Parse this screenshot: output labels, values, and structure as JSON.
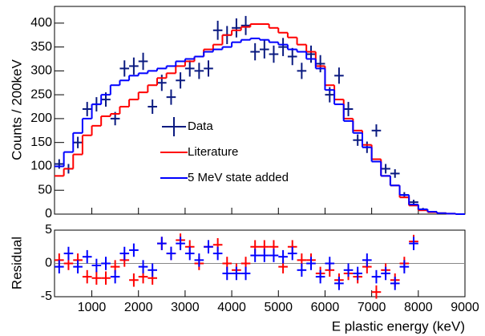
{
  "chart_data": [
    {
      "type": "step",
      "ylabel": "Counts / 200keV",
      "bins": [
        200,
        400,
        600,
        800,
        1000,
        1200,
        1400,
        1600,
        1800,
        2000,
        2200,
        2400,
        2600,
        2800,
        3000,
        3200,
        3400,
        3600,
        3800,
        4000,
        4200,
        4400,
        4600,
        4800,
        5000,
        5200,
        5400,
        5600,
        5800,
        6000,
        6200,
        6400,
        6600,
        6800,
        7000,
        7200,
        7400,
        7600,
        7800,
        8000,
        8200,
        8400,
        8600,
        8800,
        9000
      ],
      "x": [
        300,
        500,
        700,
        900,
        1100,
        1300,
        1500,
        1700,
        1900,
        2100,
        2300,
        2500,
        2700,
        2900,
        3100,
        3300,
        3500,
        3700,
        3900,
        4100,
        4300,
        4500,
        4700,
        4900,
        5100,
        5300,
        5500,
        5700,
        5900,
        6100,
        6300,
        6500,
        6700,
        6900,
        7100,
        7300,
        7500,
        7700,
        7900,
        8100,
        8300,
        8500,
        8700,
        8900
      ],
      "xlim": [
        200,
        9000
      ],
      "xticks": [
        1000,
        2000,
        3000,
        4000,
        5000,
        6000,
        7000,
        8000,
        9000
      ],
      "ylim": [
        0,
        435
      ],
      "yticks": [
        0,
        50,
        100,
        150,
        200,
        250,
        300,
        350,
        400
      ],
      "series": [
        {
          "name": "Data",
          "color": "#0a1a80",
          "kind": "points",
          "values": [
            105,
            95,
            150,
            220,
            230,
            240,
            200,
            305,
            310,
            320,
            225,
            275,
            245,
            280,
            305,
            300,
            305,
            385,
            375,
            390,
            395,
            340,
            345,
            335,
            350,
            330,
            300,
            335,
            315,
            250,
            290,
            220,
            155,
            140,
            175,
            95,
            85,
            40,
            25,
            10,
            null,
            null,
            null,
            null
          ],
          "errors": [
            10,
            10,
            12,
            15,
            15,
            15,
            14,
            17,
            18,
            18,
            15,
            17,
            16,
            17,
            17,
            17,
            17,
            20,
            19,
            20,
            20,
            18,
            19,
            18,
            19,
            18,
            17,
            18,
            18,
            16,
            17,
            15,
            12,
            12,
            13,
            10,
            9,
            6,
            5,
            3,
            null,
            null,
            null,
            null
          ]
        },
        {
          "name": "Literature",
          "color": "#ff0000",
          "kind": "step",
          "values": [
            80,
            95,
            125,
            165,
            185,
            205,
            210,
            225,
            240,
            255,
            270,
            285,
            295,
            310,
            320,
            330,
            345,
            355,
            375,
            385,
            392,
            398,
            398,
            390,
            380,
            370,
            355,
            340,
            310,
            270,
            240,
            200,
            175,
            145,
            115,
            80,
            60,
            35,
            18,
            8,
            4,
            2,
            1,
            0
          ]
        },
        {
          "name": "5 MeV state added",
          "color": "#0000ff",
          "kind": "step",
          "values": [
            100,
            130,
            170,
            200,
            230,
            250,
            270,
            280,
            290,
            295,
            300,
            305,
            310,
            320,
            325,
            330,
            340,
            345,
            350,
            360,
            365,
            368,
            365,
            360,
            355,
            345,
            340,
            325,
            305,
            260,
            230,
            195,
            170,
            140,
            110,
            80,
            60,
            40,
            20,
            10,
            5,
            2,
            1,
            0
          ]
        }
      ]
    },
    {
      "type": "residual",
      "ylabel": "Residual",
      "xlabel": "E plastic energy (keV)",
      "x": [
        300,
        500,
        700,
        900,
        1100,
        1300,
        1500,
        1700,
        1900,
        2100,
        2300,
        2500,
        2700,
        2900,
        3100,
        3300,
        3500,
        3700,
        3900,
        4100,
        4300,
        4500,
        4700,
        4900,
        5100,
        5300,
        5500,
        5700,
        5900,
        6100,
        6300,
        6500,
        6700,
        6900,
        7100,
        7300,
        7500,
        7700,
        7900
      ],
      "xlim": [
        200,
        9000
      ],
      "xticks": [
        1000,
        2000,
        3000,
        4000,
        5000,
        6000,
        7000,
        8000,
        9000
      ],
      "ylim": [
        -5,
        5
      ],
      "yticks": [
        -5,
        0,
        5
      ],
      "series": [
        {
          "color": "#ff0000",
          "values": [
            0.5,
            0,
            0.5,
            -2,
            -2.2,
            -2.2,
            -0.5,
            0.5,
            -2.5,
            -2,
            -2.2,
            3,
            1.5,
            3.5,
            2.5,
            0,
            2.5,
            2.8,
            0,
            -1,
            0,
            2.5,
            2.5,
            2.5,
            -0.5,
            2.5,
            0.5,
            0.5,
            -1.5,
            -1,
            -2.5,
            -1.5,
            -2,
            -0.5,
            -4.3,
            -1,
            -2.5,
            0,
            3.3
          ]
        },
        {
          "color": "#0000ff",
          "values": [
            -0.5,
            1.5,
            -0.5,
            1,
            -0.3,
            0,
            -2,
            1.5,
            2,
            -0.5,
            -1,
            3,
            1.5,
            3,
            1.5,
            0.5,
            2.5,
            1.5,
            -1.5,
            -1.5,
            -1.5,
            1.2,
            1.2,
            1.2,
            1,
            1.5,
            -1,
            0,
            -2,
            0,
            -3,
            -1,
            -1.5,
            0.5,
            -2,
            -1.5,
            -3,
            -0.5,
            3
          ]
        }
      ]
    }
  ]
}
